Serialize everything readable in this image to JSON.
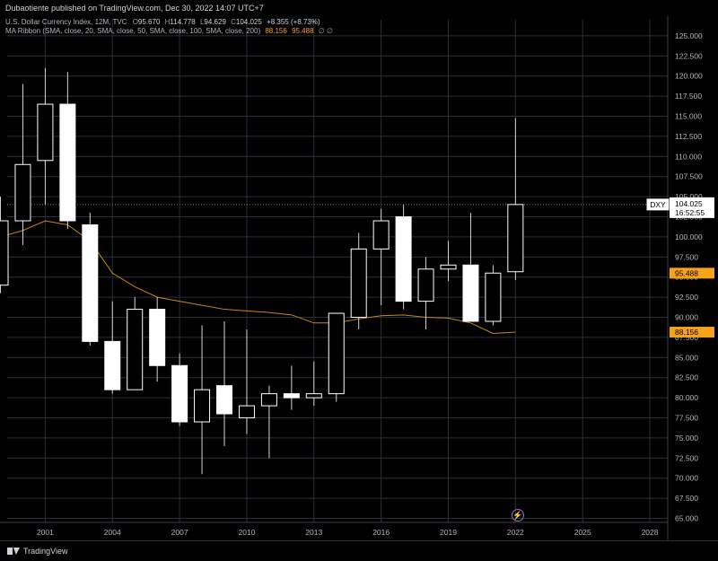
{
  "header": {
    "publisher_line": "Dubaotiente published on TradingView.com, Dec 30, 2022 14:07 UTC+7"
  },
  "legend": {
    "symbol_line": "U.S. Dollar Currency Index, 12M, TVC",
    "o_label": "O",
    "o_value": "95.670",
    "h_label": "H",
    "h_value": "114.778",
    "l_label": "L",
    "l_value": "94.629",
    "c_label": "C",
    "c_value": "104.025",
    "change": "+8.355 (+8.73%)",
    "ma_line": "MA Ribbon (SMA, close, 20, SMA, close, 50, SMA, close, 100, SMA, close, 200)",
    "ma_v1": "88.156",
    "ma_v2": "95.488",
    "ma_tail": "∅  ∅"
  },
  "footer": {
    "brand": "TradingView"
  },
  "chart_data": {
    "type": "candlestick",
    "title": "U.S. Dollar Currency Index, 12M, TVC",
    "ylim": [
      64.5,
      127
    ],
    "xlim": [
      1999.3,
      2028.8
    ],
    "y_ticks": [
      "65.000",
      "67.500",
      "70.000",
      "72.500",
      "75.000",
      "77.500",
      "80.000",
      "82.500",
      "85.000",
      "87.500",
      "90.000",
      "92.500",
      "95.000",
      "97.500",
      "100.000",
      "102.500",
      "105.000",
      "107.500",
      "110.000",
      "112.500",
      "115.000",
      "117.500",
      "120.000",
      "122.500",
      "125.000"
    ],
    "x_ticks": [
      {
        "label": "2001",
        "x": 2001
      },
      {
        "label": "2004",
        "x": 2004
      },
      {
        "label": "2007",
        "x": 2007
      },
      {
        "label": "2010",
        "x": 2010
      },
      {
        "label": "2013",
        "x": 2013
      },
      {
        "label": "2016",
        "x": 2016
      },
      {
        "label": "2019",
        "x": 2019
      },
      {
        "label": "2022",
        "x": 2022
      },
      {
        "label": "2025",
        "x": 2025
      },
      {
        "label": "2028",
        "x": 2028
      }
    ],
    "candles": [
      {
        "x": 1999,
        "o": 94.0,
        "h": 105.0,
        "l": 93.0,
        "c": 102.0
      },
      {
        "x": 2000,
        "o": 102.0,
        "h": 119.0,
        "l": 99.0,
        "c": 109.0
      },
      {
        "x": 2001,
        "o": 109.5,
        "h": 121.0,
        "l": 104.0,
        "c": 116.5
      },
      {
        "x": 2002,
        "o": 116.5,
        "h": 120.5,
        "l": 101.0,
        "c": 102.0
      },
      {
        "x": 2003,
        "o": 101.5,
        "h": 103.0,
        "l": 86.5,
        "c": 87.0
      },
      {
        "x": 2004,
        "o": 87.0,
        "h": 92.0,
        "l": 80.5,
        "c": 81.0
      },
      {
        "x": 2005,
        "o": 81.0,
        "h": 92.5,
        "l": 81.0,
        "c": 91.0
      },
      {
        "x": 2006,
        "o": 91.0,
        "h": 92.5,
        "l": 82.0,
        "c": 84.0
      },
      {
        "x": 2007,
        "o": 84.0,
        "h": 85.5,
        "l": 76.5,
        "c": 77.0
      },
      {
        "x": 2008,
        "o": 77.0,
        "h": 89.0,
        "l": 70.5,
        "c": 81.0
      },
      {
        "x": 2009,
        "o": 81.5,
        "h": 89.5,
        "l": 74.0,
        "c": 78.0
      },
      {
        "x": 2010,
        "o": 77.5,
        "h": 88.5,
        "l": 75.5,
        "c": 79.0
      },
      {
        "x": 2011,
        "o": 79.0,
        "h": 81.5,
        "l": 72.5,
        "c": 80.5
      },
      {
        "x": 2012,
        "o": 80.5,
        "h": 84.0,
        "l": 78.5,
        "c": 80.0
      },
      {
        "x": 2013,
        "o": 80.0,
        "h": 84.5,
        "l": 79.0,
        "c": 80.5
      },
      {
        "x": 2014,
        "o": 80.5,
        "h": 90.5,
        "l": 79.5,
        "c": 90.5
      },
      {
        "x": 2015,
        "o": 90.0,
        "h": 100.5,
        "l": 88.5,
        "c": 98.5
      },
      {
        "x": 2016,
        "o": 98.5,
        "h": 103.5,
        "l": 91.5,
        "c": 102.0
      },
      {
        "x": 2017,
        "o": 102.5,
        "h": 104.0,
        "l": 91.0,
        "c": 92.0
      },
      {
        "x": 2018,
        "o": 92.0,
        "h": 97.5,
        "l": 88.5,
        "c": 96.0
      },
      {
        "x": 2019,
        "o": 96.0,
        "h": 99.5,
        "l": 94.5,
        "c": 96.5
      },
      {
        "x": 2020,
        "o": 96.5,
        "h": 103.0,
        "l": 89.5,
        "c": 89.5
      },
      {
        "x": 2021,
        "o": 89.5,
        "h": 96.5,
        "l": 89.0,
        "c": 95.5
      },
      {
        "x": 2022,
        "o": 95.67,
        "h": 114.778,
        "l": 94.629,
        "c": 104.025
      }
    ],
    "ma_series": [
      {
        "x": 1999,
        "y": 100.0
      },
      {
        "x": 2000,
        "y": 100.8
      },
      {
        "x": 2001,
        "y": 102.0
      },
      {
        "x": 2002,
        "y": 101.5
      },
      {
        "x": 2003,
        "y": 99.5
      },
      {
        "x": 2004,
        "y": 95.5
      },
      {
        "x": 2005,
        "y": 93.8
      },
      {
        "x": 2006,
        "y": 92.5
      },
      {
        "x": 2007,
        "y": 92.0
      },
      {
        "x": 2008,
        "y": 91.5
      },
      {
        "x": 2009,
        "y": 91.0
      },
      {
        "x": 2010,
        "y": 90.8
      },
      {
        "x": 2011,
        "y": 90.6
      },
      {
        "x": 2012,
        "y": 90.3
      },
      {
        "x": 2013,
        "y": 89.3
      },
      {
        "x": 2014,
        "y": 89.3
      },
      {
        "x": 2015,
        "y": 89.8
      },
      {
        "x": 2016,
        "y": 90.2
      },
      {
        "x": 2017,
        "y": 90.3
      },
      {
        "x": 2018,
        "y": 90.0
      },
      {
        "x": 2019,
        "y": 89.9
      },
      {
        "x": 2020,
        "y": 89.3
      },
      {
        "x": 2021,
        "y": 88.0
      },
      {
        "x": 2022,
        "y": 88.156
      }
    ],
    "price_labels": [
      {
        "text": "DXY",
        "y": 104.025,
        "kind": "symbol",
        "value": "104.025",
        "countdown": "16:52:55"
      },
      {
        "text": "95.488",
        "y": 95.488,
        "kind": "orange"
      },
      {
        "text": "88.156",
        "y": 88.156,
        "kind": "orange"
      }
    ],
    "last_price_line": 104.025
  }
}
